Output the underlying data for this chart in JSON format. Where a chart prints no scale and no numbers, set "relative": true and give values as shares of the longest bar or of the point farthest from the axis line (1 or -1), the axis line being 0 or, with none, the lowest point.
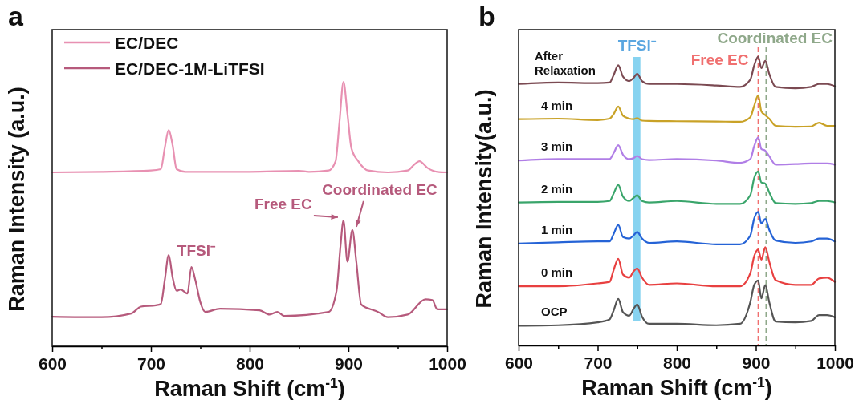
{
  "chart_data": [
    {
      "type": "line",
      "title": "a",
      "xlabel": "Raman Shift (cm$^{-1}$)",
      "ylabel": "Raman Intensity (a.u.)",
      "relative": true,
      "xlim": [
        600,
        1000
      ],
      "xticks": [
        600,
        {
          "value": 650,
          "label": null
        },
        700,
        {
          "value": 750,
          "label": null
        },
        800,
        {
          "value": 850,
          "label": null
        },
        900,
        {
          "value": 950,
          "label": null
        },
        1000
      ],
      "legend": "top left",
      "grid": false,
      "series": [
        {
          "name": "EC/DEC",
          "color": "#e891b2",
          "x": [
            600,
            650,
            700,
            710,
            714,
            718,
            722,
            726,
            735,
            800,
            850,
            860,
            880,
            887,
            891,
            895,
            899,
            903,
            910,
            920,
            940,
            960,
            966,
            972,
            980,
            990,
            1000
          ],
          "values": [
            0.658,
            0.66,
            0.665,
            0.67,
            0.75,
            0.818,
            0.76,
            0.67,
            0.66,
            0.66,
            0.664,
            0.66,
            0.665,
            0.7,
            0.85,
            1.0,
            0.88,
            0.75,
            0.7,
            0.665,
            0.658,
            0.665,
            0.685,
            0.7,
            0.675,
            0.66,
            0.658
          ]
        },
        {
          "name": "EC/DEC-1M-LiTFSI",
          "color": "#b65a7c",
          "x": [
            600,
            650,
            680,
            690,
            705,
            710,
            714,
            718,
            722,
            726,
            730,
            737,
            741,
            745,
            750,
            755,
            770,
            810,
            820,
            828,
            835,
            880,
            888,
            892,
            895,
            899,
            904,
            908,
            913,
            930,
            940,
            960,
            978,
            985,
            990,
            1000
          ],
          "values": [
            0.112,
            0.11,
            0.124,
            0.15,
            0.155,
            0.16,
            0.25,
            0.345,
            0.26,
            0.21,
            0.215,
            0.2,
            0.3,
            0.25,
            0.167,
            0.13,
            0.142,
            0.136,
            0.12,
            0.13,
            0.115,
            0.13,
            0.21,
            0.38,
            0.476,
            0.32,
            0.44,
            0.32,
            0.158,
            0.13,
            0.11,
            0.12,
            0.178,
            0.175,
            0.14,
            0.14
          ]
        }
      ],
      "annotations": [
        {
          "text": "TFSI⁻",
          "x": 741,
          "y": 0.3
        },
        {
          "text": "Free EC",
          "x": 895,
          "y": 0.476
        },
        {
          "text": "Coordinated EC",
          "x": 904,
          "y": 0.44
        }
      ]
    },
    {
      "type": "line",
      "title": "b",
      "xlabel": "Raman Shift (cm$^{-1}$)",
      "ylabel": "Raman Intensity(a.u.)",
      "relative": true,
      "xlim": [
        600,
        1000
      ],
      "xticks": [
        600,
        {
          "value": 650,
          "label": null
        },
        700,
        {
          "value": 750,
          "label": null
        },
        800,
        {
          "value": 850,
          "label": null
        },
        900,
        {
          "value": 950,
          "label": null
        },
        1000
      ],
      "legend": false,
      "grid": false,
      "x": [
        600,
        650,
        700,
        715,
        720,
        726,
        732,
        740,
        745,
        750,
        756,
        765,
        800,
        850,
        880,
        893,
        898,
        903,
        907,
        912,
        917,
        925,
        950,
        970,
        980,
        990,
        1000
      ],
      "series": [
        {
          "name": "After Relaxation",
          "color": "#7b4a52",
          "values": [
            0.905,
            0.91,
            0.908,
            0.91,
            0.935,
            0.97,
            0.93,
            0.915,
            0.925,
            0.94,
            0.915,
            0.905,
            0.905,
            0.9,
            0.895,
            0.92,
            0.97,
            1.0,
            0.96,
            0.985,
            0.94,
            0.895,
            0.89,
            0.895,
            0.905,
            0.905,
            0.897
          ]
        },
        {
          "name": "4 min",
          "color": "#c9a227",
          "values": [
            0.783,
            0.785,
            0.78,
            0.785,
            0.8,
            0.827,
            0.795,
            0.785,
            0.783,
            0.787,
            0.778,
            0.777,
            0.776,
            0.775,
            0.774,
            0.79,
            0.83,
            0.866,
            0.81,
            0.797,
            0.785,
            0.76,
            0.757,
            0.758,
            0.771,
            0.76,
            0.76
          ]
        },
        {
          "name": "3 min",
          "color": "#b07ee6",
          "values": [
            0.64,
            0.645,
            0.645,
            0.645,
            0.665,
            0.693,
            0.66,
            0.645,
            0.648,
            0.656,
            0.645,
            0.642,
            0.645,
            0.64,
            0.632,
            0.645,
            0.69,
            0.72,
            0.68,
            0.674,
            0.655,
            0.626,
            0.628,
            0.63,
            0.63,
            0.63,
            0.626
          ]
        },
        {
          "name": "2 min",
          "color": "#3aa56b",
          "values": [
            0.495,
            0.497,
            0.497,
            0.5,
            0.525,
            0.556,
            0.515,
            0.5,
            0.51,
            0.52,
            0.5,
            0.495,
            0.5,
            0.49,
            0.49,
            0.52,
            0.58,
            0.602,
            0.564,
            0.56,
            0.53,
            0.493,
            0.49,
            0.493,
            0.5,
            0.5,
            0.495
          ]
        },
        {
          "name": "1 min",
          "color": "#2563d6",
          "values": [
            0.353,
            0.357,
            0.36,
            0.36,
            0.385,
            0.417,
            0.375,
            0.37,
            0.38,
            0.393,
            0.37,
            0.355,
            0.36,
            0.35,
            0.35,
            0.38,
            0.44,
            0.462,
            0.422,
            0.438,
            0.4,
            0.363,
            0.355,
            0.36,
            0.37,
            0.37,
            0.36
          ]
        },
        {
          "name": "0 min",
          "color": "#e84040",
          "values": [
            0.205,
            0.205,
            0.215,
            0.22,
            0.26,
            0.3,
            0.245,
            0.235,
            0.255,
            0.267,
            0.235,
            0.21,
            0.215,
            0.205,
            0.205,
            0.25,
            0.31,
            0.332,
            0.297,
            0.34,
            0.29,
            0.226,
            0.21,
            0.21,
            0.232,
            0.235,
            0.22
          ]
        },
        {
          "name": "OCP",
          "color": "#555555",
          "values": [
            0.068,
            0.07,
            0.08,
            0.09,
            0.12,
            0.161,
            0.115,
            0.103,
            0.125,
            0.142,
            0.1,
            0.075,
            0.075,
            0.07,
            0.075,
            0.15,
            0.21,
            0.225,
            0.163,
            0.209,
            0.15,
            0.083,
            0.08,
            0.085,
            0.105,
            0.105,
            0.098
          ]
        }
      ],
      "bands": [
        {
          "axis": "x",
          "from": 745,
          "to": 754,
          "label": "TFSI⁻",
          "color": "#87d3f0"
        }
      ],
      "ref_lines": [
        {
          "axis": "x",
          "value": 903,
          "label": "Free EC",
          "color": "#f07070",
          "line_style": "dashed"
        },
        {
          "axis": "x",
          "value": 913,
          "label": "Coordinated EC",
          "color": "#8fa88a",
          "line_style": "dashed"
        }
      ]
    }
  ]
}
